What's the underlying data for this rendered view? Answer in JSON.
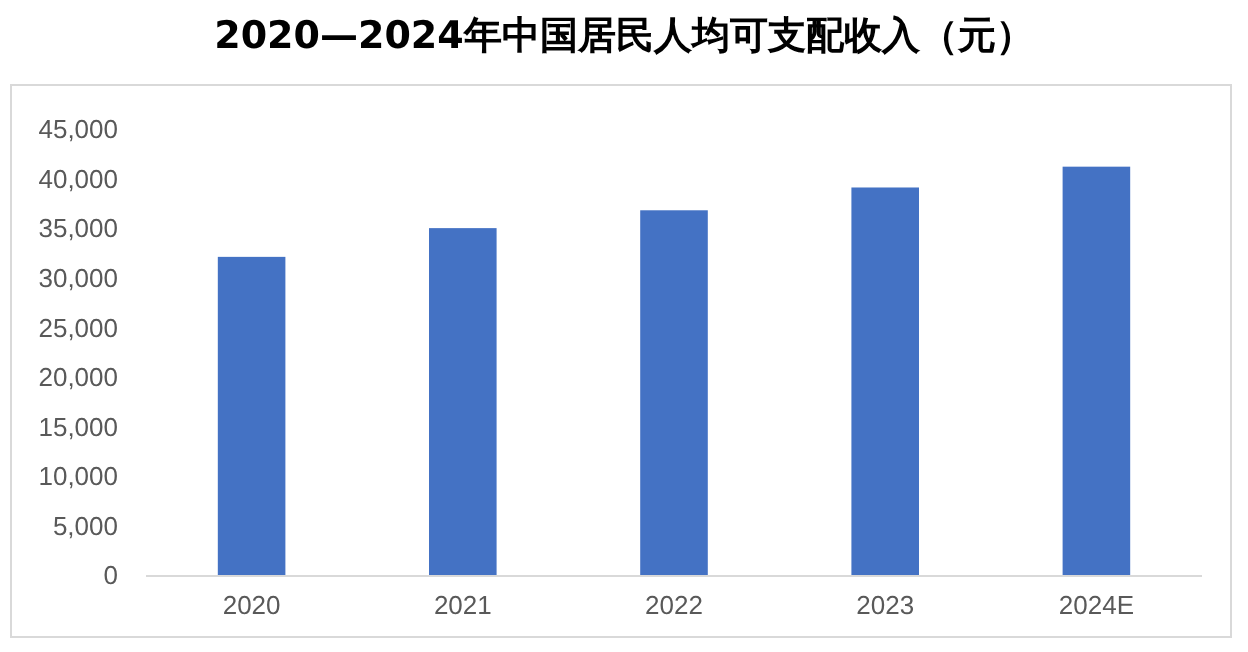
{
  "chart_data": {
    "type": "bar",
    "title": "2020—2024年中国居民人均可支配收入（元）",
    "categories": [
      "2020",
      "2021",
      "2022",
      "2023",
      "2024E"
    ],
    "values": [
      32200,
      35100,
      36900,
      39200,
      41300
    ],
    "color": "#4472c4",
    "ylim": [
      0,
      45000
    ],
    "yticks": [
      {
        "value": 0,
        "label": "0"
      },
      {
        "value": 5000,
        "label": "5,000"
      },
      {
        "value": 10000,
        "label": "10,000"
      },
      {
        "value": 15000,
        "label": "15,000"
      },
      {
        "value": 20000,
        "label": "20,000"
      },
      {
        "value": 25000,
        "label": "25,000"
      },
      {
        "value": 30000,
        "label": "30,000"
      },
      {
        "value": 35000,
        "label": "35,000"
      },
      {
        "value": 40000,
        "label": "40,000"
      },
      {
        "value": 45000,
        "label": "45,000"
      }
    ],
    "grid": false,
    "legend": false
  }
}
